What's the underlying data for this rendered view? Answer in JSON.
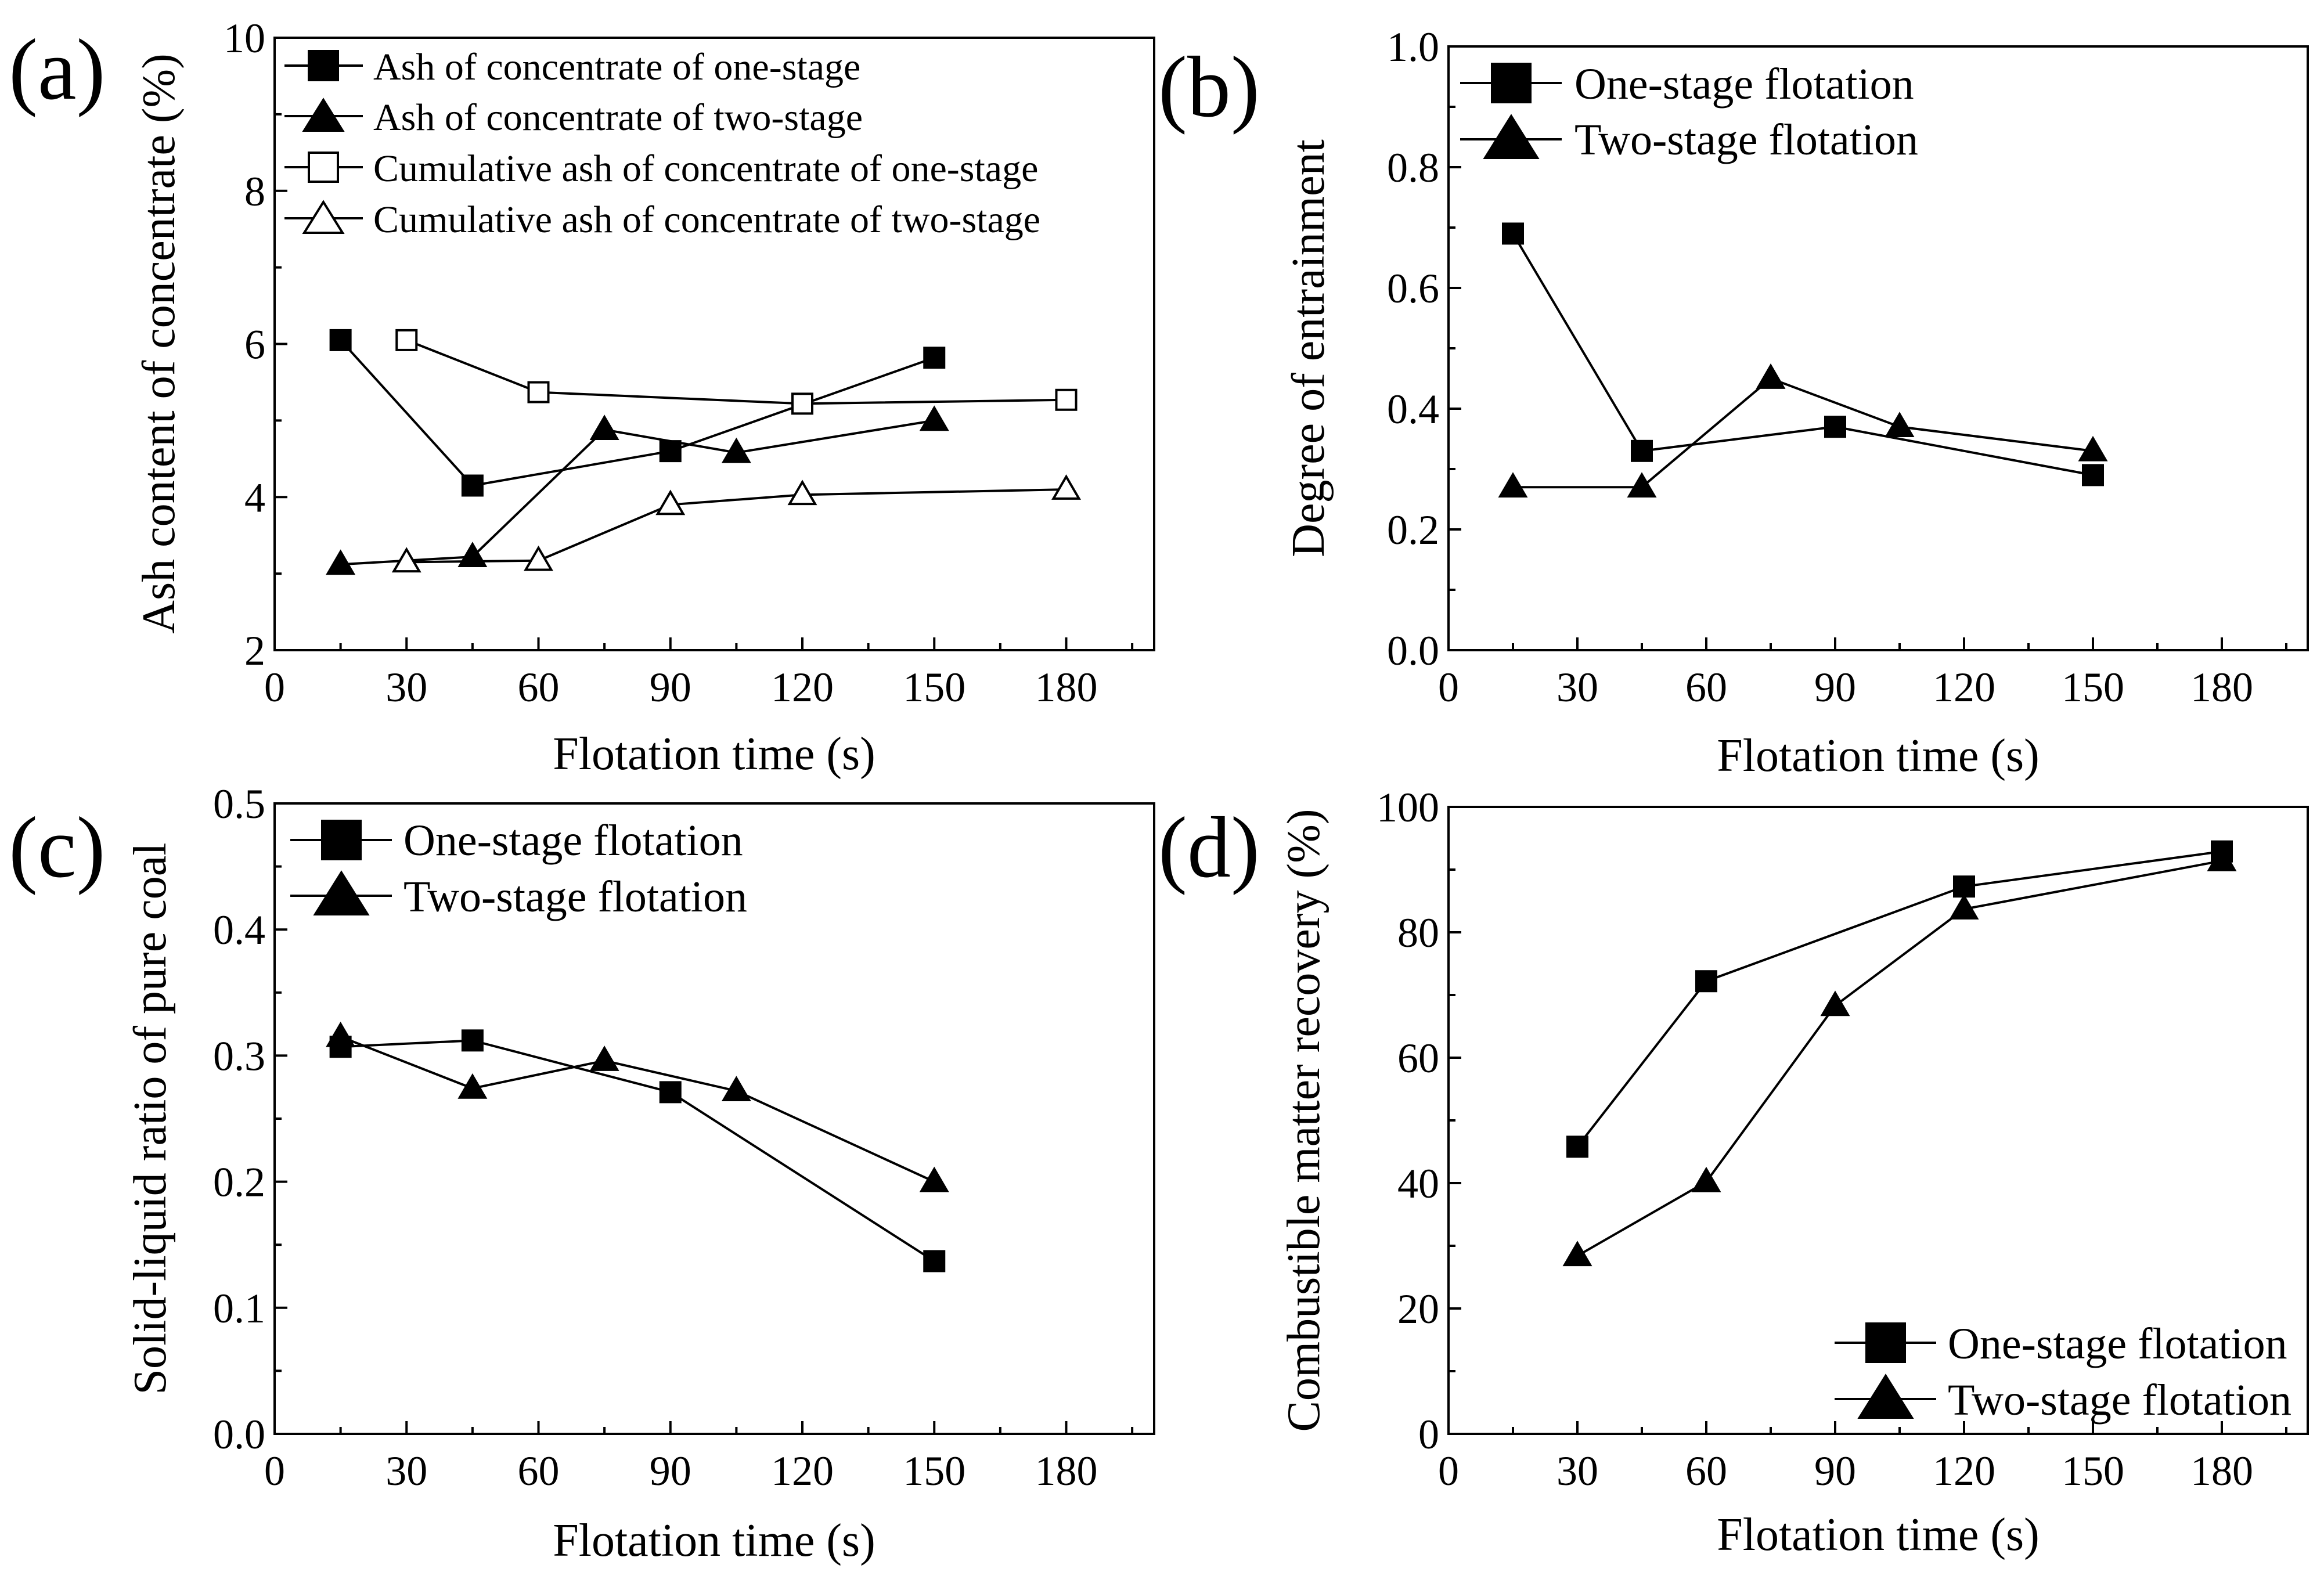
{
  "figure": {
    "panels": [
      "a",
      "b",
      "c",
      "d"
    ]
  },
  "chart_data": [
    {
      "id": "a",
      "panel_label": "(a)",
      "type": "line",
      "xlabel": "Flotation time (s)",
      "ylabel": "Ash content of concentrate (%)",
      "xlim": [
        0,
        200
      ],
      "ylim": [
        2,
        10
      ],
      "xticks": [
        0,
        30,
        60,
        90,
        120,
        150,
        180
      ],
      "yticks": [
        2,
        4,
        6,
        8,
        10
      ],
      "ytick_labels": [
        "2",
        "4",
        "6",
        "8",
        "10"
      ],
      "legend_position": "top-right",
      "series": [
        {
          "name": "Ash of concentrate of one-stage",
          "marker": "square",
          "filled": true,
          "x": [
            15,
            45,
            90,
            150
          ],
          "y": [
            6.05,
            4.15,
            4.6,
            5.82
          ]
        },
        {
          "name": "Ash of concentrate of two-stage",
          "marker": "triangle",
          "filled": true,
          "x": [
            15,
            45,
            75,
            105,
            150
          ],
          "y": [
            3.12,
            3.22,
            4.88,
            4.58,
            5.0
          ]
        },
        {
          "name": "Cumulative ash of concentrate of one-stage",
          "marker": "square",
          "filled": false,
          "x": [
            30,
            60,
            120,
            180
          ],
          "y": [
            6.05,
            5.37,
            5.22,
            5.27
          ]
        },
        {
          "name": "Cumulative ash of concentrate of two-stage",
          "marker": "triangle",
          "filled": false,
          "x": [
            30,
            60,
            90,
            120,
            180
          ],
          "y": [
            3.15,
            3.17,
            3.9,
            4.03,
            4.1
          ]
        }
      ]
    },
    {
      "id": "b",
      "panel_label": "(b)",
      "type": "line",
      "xlabel": "Flotation time (s)",
      "ylabel": "Degree of entrainment",
      "xlim": [
        0,
        200
      ],
      "ylim": [
        0,
        1
      ],
      "xticks": [
        0,
        30,
        60,
        90,
        120,
        150,
        180
      ],
      "yticks": [
        0,
        0.2,
        0.4,
        0.6,
        0.8,
        1.0
      ],
      "ytick_labels": [
        "0.0",
        "0.2",
        "0.4",
        "0.6",
        "0.8",
        "1.0"
      ],
      "legend_position": "top-left",
      "series": [
        {
          "name": "One-stage flotation",
          "marker": "square",
          "filled": true,
          "x": [
            15,
            45,
            90,
            150
          ],
          "y": [
            0.69,
            0.33,
            0.37,
            0.29
          ]
        },
        {
          "name": "Two-stage flotation",
          "marker": "triangle",
          "filled": true,
          "x": [
            15,
            45,
            75,
            105,
            150
          ],
          "y": [
            0.27,
            0.27,
            0.45,
            0.37,
            0.33
          ]
        }
      ]
    },
    {
      "id": "c",
      "panel_label": "(c)",
      "type": "line",
      "xlabel": "Flotation time (s)",
      "ylabel": "Solid-liquid ratio of pure coal",
      "xlim": [
        0,
        200
      ],
      "ylim": [
        0,
        0.5
      ],
      "xticks": [
        0,
        30,
        60,
        90,
        120,
        150,
        180
      ],
      "yticks": [
        0,
        0.1,
        0.2,
        0.3,
        0.4,
        0.5
      ],
      "ytick_labels": [
        "0.0",
        "0.1",
        "0.2",
        "0.3",
        "0.4",
        "0.5"
      ],
      "legend_position": "top-left",
      "series": [
        {
          "name": "One-stage flotation",
          "marker": "square",
          "filled": true,
          "x": [
            15,
            45,
            90,
            150
          ],
          "y": [
            0.307,
            0.312,
            0.271,
            0.137
          ]
        },
        {
          "name": "Two-stage flotation",
          "marker": "triangle",
          "filled": true,
          "x": [
            15,
            45,
            75,
            105,
            150
          ],
          "y": [
            0.315,
            0.274,
            0.296,
            0.272,
            0.2
          ]
        }
      ]
    },
    {
      "id": "d",
      "panel_label": "(d)",
      "type": "line",
      "xlabel": "Flotation time (s)",
      "ylabel": "Combustible matter recovery (%)",
      "xlim": [
        0,
        200
      ],
      "ylim": [
        0,
        100
      ],
      "xticks": [
        0,
        30,
        60,
        90,
        120,
        150,
        180
      ],
      "yticks": [
        0,
        20,
        40,
        60,
        80,
        100
      ],
      "ytick_labels": [
        "0",
        "20",
        "40",
        "60",
        "80",
        "100"
      ],
      "legend_position": "bottom-right",
      "series": [
        {
          "name": "One-stage flotation",
          "marker": "square",
          "filled": true,
          "x": [
            30,
            60,
            120,
            180
          ],
          "y": [
            45.8,
            72.2,
            87.3,
            92.9
          ]
        },
        {
          "name": "Two-stage flotation",
          "marker": "triangle",
          "filled": true,
          "x": [
            30,
            60,
            90,
            120,
            180
          ],
          "y": [
            28.4,
            40.2,
            68.3,
            83.7,
            91.4
          ]
        }
      ]
    }
  ]
}
